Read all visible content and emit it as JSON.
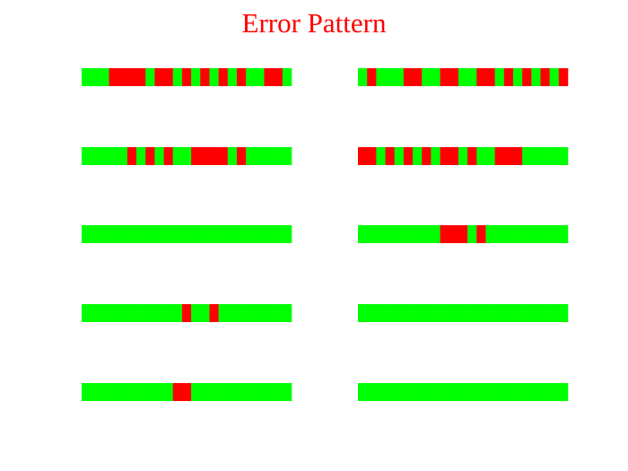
{
  "chart_data": {
    "type": "heatmap",
    "title": "Error Pattern",
    "colors": [
      "#00ff00",
      "#ff0000"
    ],
    "rows": [
      [
        0,
        0,
        0,
        1,
        1,
        1,
        1,
        0,
        1,
        1,
        0,
        1,
        0,
        1,
        0,
        1,
        0,
        1,
        0,
        0,
        1,
        1,
        0
      ],
      [
        0,
        1,
        0,
        0,
        0,
        1,
        1,
        0,
        0,
        1,
        1,
        0,
        0,
        1,
        1,
        0,
        1,
        0,
        1,
        0,
        1,
        0,
        1
      ],
      [
        0,
        0,
        0,
        0,
        0,
        1,
        0,
        1,
        0,
        1,
        0,
        0,
        1,
        1,
        1,
        1,
        0,
        1,
        0,
        0,
        0,
        0,
        0
      ],
      [
        1,
        1,
        0,
        1,
        0,
        1,
        0,
        1,
        0,
        1,
        1,
        0,
        1,
        0,
        0,
        1,
        1,
        1,
        0,
        0,
        0,
        0,
        0
      ],
      [
        0,
        0,
        0,
        0,
        0,
        0,
        0,
        0,
        0,
        0,
        0,
        0,
        0,
        0,
        0,
        0,
        0,
        0,
        0,
        0,
        0,
        0,
        0
      ],
      [
        0,
        0,
        0,
        0,
        0,
        0,
        0,
        0,
        0,
        1,
        1,
        1,
        0,
        1,
        0,
        0,
        0,
        0,
        0,
        0,
        0,
        0,
        0
      ],
      [
        0,
        0,
        0,
        0,
        0,
        0,
        0,
        0,
        0,
        0,
        0,
        1,
        0,
        0,
        1,
        0,
        0,
        0,
        0,
        0,
        0,
        0,
        0
      ],
      [
        0,
        0,
        0,
        0,
        0,
        0,
        0,
        0,
        0,
        0,
        0,
        0,
        0,
        0,
        0,
        0,
        0,
        0,
        0,
        0,
        0,
        0,
        0
      ],
      [
        0,
        0,
        0,
        0,
        0,
        0,
        0,
        0,
        0,
        0,
        1,
        1,
        0,
        0,
        0,
        0,
        0,
        0,
        0,
        0,
        0,
        0,
        0
      ],
      [
        0,
        0,
        0,
        0,
        0,
        0,
        0,
        0,
        0,
        0,
        0,
        0,
        0,
        0,
        0,
        0,
        0,
        0,
        0,
        0,
        0,
        0,
        0
      ]
    ]
  }
}
